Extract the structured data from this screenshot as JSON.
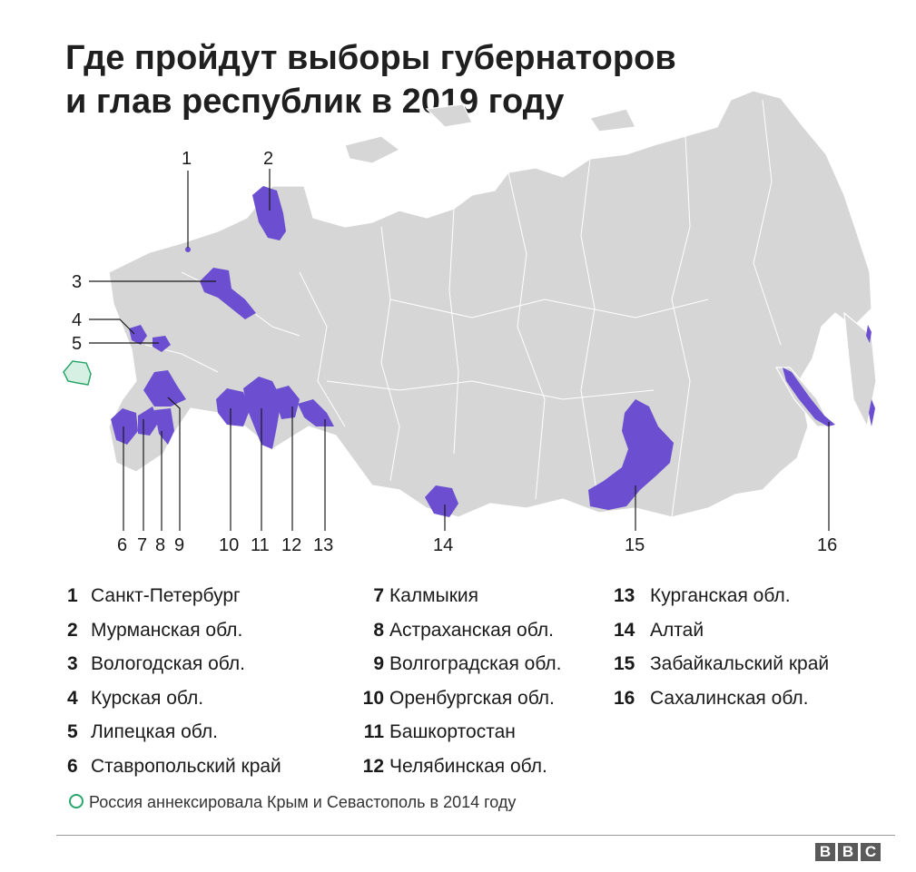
{
  "title": {
    "line1": "Где пройдут выборы губернаторов",
    "line2": "и глав республик в 2019 году"
  },
  "colors": {
    "land": "#d6d6d6",
    "highlight": "#6b4fd0",
    "crimea": "#2aa56b",
    "text": "#1a1a1a"
  },
  "map_labels": [
    "1",
    "2",
    "3",
    "4",
    "5",
    "6",
    "7",
    "8",
    "9",
    "10",
    "11",
    "12",
    "13",
    "14",
    "15",
    "16"
  ],
  "legend": [
    {
      "num": "1",
      "name": "Санкт-Петербург"
    },
    {
      "num": "2",
      "name": "Мурманская обл."
    },
    {
      "num": "3",
      "name": "Вологодская обл."
    },
    {
      "num": "4",
      "name": "Курская обл."
    },
    {
      "num": "5",
      "name": "Липецкая обл."
    },
    {
      "num": "6",
      "name": "Ставропольский край"
    },
    {
      "num": "7",
      "name": "Калмыкия"
    },
    {
      "num": "8",
      "name": "Астраханская обл."
    },
    {
      "num": "9",
      "name": "Волгоградская обл."
    },
    {
      "num": "10",
      "name": "Оренбургская обл."
    },
    {
      "num": "11",
      "name": "Башкортостан"
    },
    {
      "num": "12",
      "name": "Челябинская обл."
    },
    {
      "num": "13",
      "name": "Курганская обл."
    },
    {
      "num": "14",
      "name": "Алтай"
    },
    {
      "num": "15",
      "name": "Забайкальский край"
    },
    {
      "num": "16",
      "name": "Сахалинская обл."
    }
  ],
  "note": "Россия аннексировала Крым и Севастополь в 2014 году",
  "logo": "BBC"
}
